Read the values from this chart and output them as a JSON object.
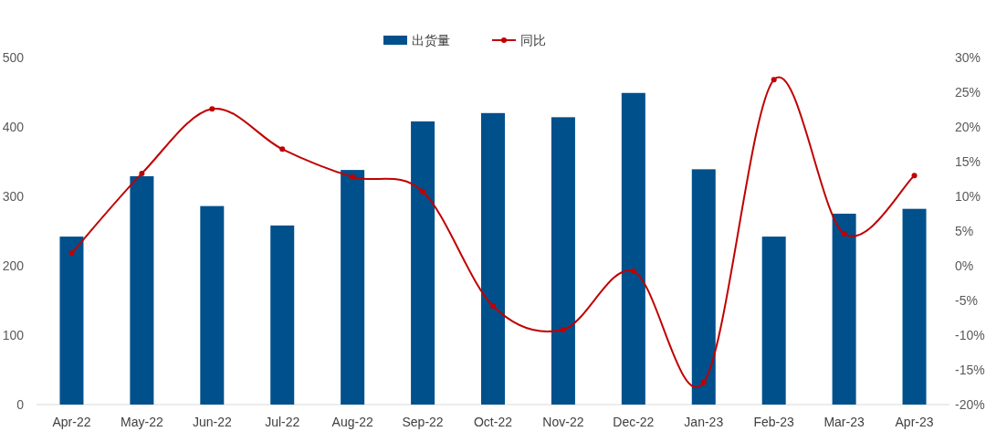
{
  "chart_data": {
    "type": "bar",
    "categories": [
      "Apr-22",
      "May-22",
      "Jun-22",
      "Jul-22",
      "Aug-22",
      "Sep-22",
      "Oct-22",
      "Nov-22",
      "Dec-22",
      "Jan-23",
      "Feb-23",
      "Mar-23",
      "Apr-23"
    ],
    "series": [
      {
        "name": "出货量",
        "color": "#00508c",
        "values": [
          242,
          329,
          286,
          258,
          338,
          408,
          420,
          414,
          449,
          339,
          242,
          275,
          282
        ]
      },
      {
        "name": "同比",
        "type": "line",
        "axis": "y2",
        "color": "#c00000",
        "marker": "circle",
        "values": [
          1.8,
          13.3,
          22.6,
          16.8,
          12.8,
          10.7,
          -5.8,
          -9.2,
          -0.8,
          -16.8,
          26.8,
          4.6,
          13.0
        ]
      }
    ],
    "ylim": [
      0,
      500
    ],
    "yticks": [
      0,
      100,
      200,
      300,
      400,
      500
    ],
    "y2lim": [
      -20,
      30
    ],
    "y2ticks": [
      {
        "value": -20,
        "label": "-20%"
      },
      {
        "value": -15,
        "label": "-15%"
      },
      {
        "value": -10,
        "label": "-10%"
      },
      {
        "value": -5,
        "label": "-5%"
      },
      {
        "value": 0,
        "label": "0%"
      },
      {
        "value": 5,
        "label": "5%"
      },
      {
        "value": 10,
        "label": "10%"
      },
      {
        "value": 15,
        "label": "15%"
      },
      {
        "value": 20,
        "label": "20%"
      },
      {
        "value": 25,
        "label": "25%"
      },
      {
        "value": 30,
        "label": "30%"
      }
    ],
    "legend": "top"
  }
}
